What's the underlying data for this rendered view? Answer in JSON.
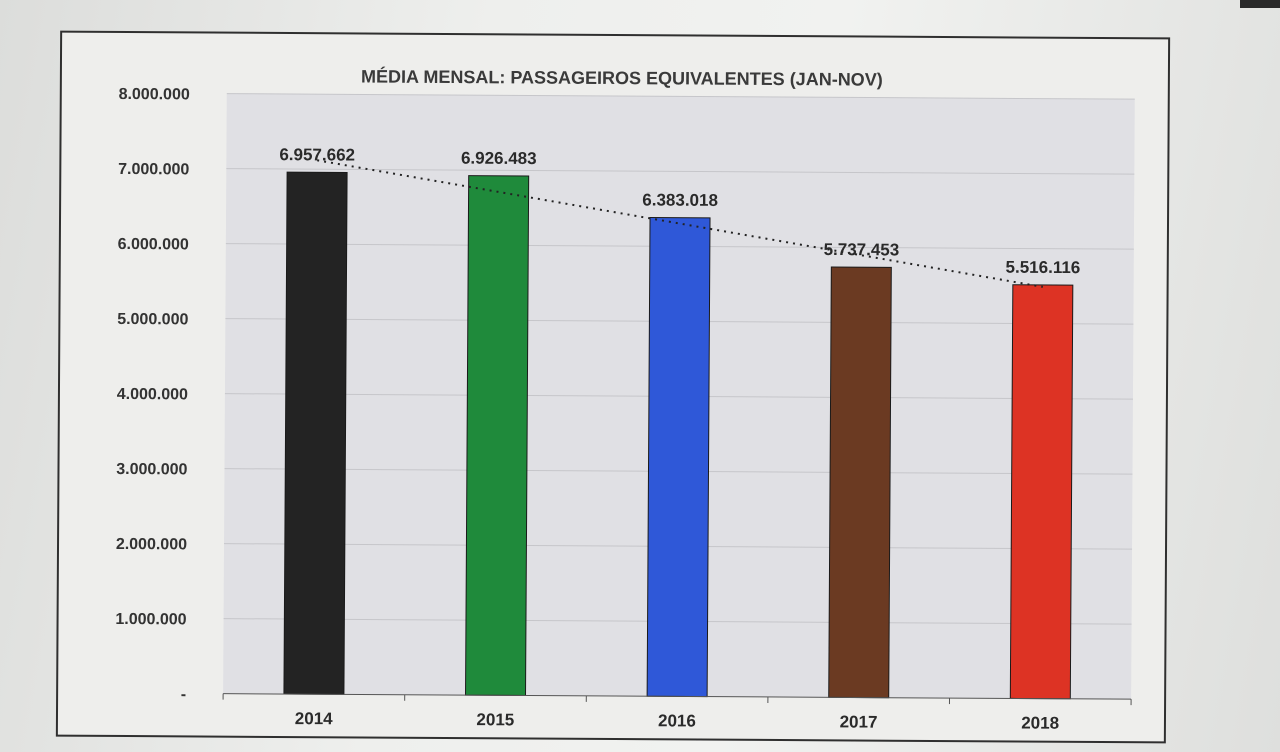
{
  "chart_data": {
    "type": "bar",
    "title": "MÉDIA MENSAL: PASSAGEIROS EQUIVALENTES (JAN-NOV)",
    "xlabel": "",
    "ylabel": "",
    "categories": [
      "2014",
      "2015",
      "2016",
      "2017",
      "2018"
    ],
    "values": [
      6957662,
      6926483,
      6383018,
      5737453,
      5516116
    ],
    "data_labels": [
      "6.957.662",
      "6.926.483",
      "6.383.018",
      "5.737.453",
      "5.516.116"
    ],
    "bar_colors": [
      "#232323",
      "#1f8a3b",
      "#2f58d8",
      "#6b3a22",
      "#dd3324"
    ],
    "ylim": [
      0,
      8000000
    ],
    "y_ticks": [
      0,
      1000000,
      2000000,
      3000000,
      4000000,
      5000000,
      6000000,
      7000000,
      8000000
    ],
    "y_tick_labels": [
      "-",
      "1.000.000",
      "2.000.000",
      "3.000.000",
      "4.000.000",
      "5.000.000",
      "6.000.000",
      "7.000.000",
      "8.000.000"
    ],
    "grid": true,
    "trendline": "linear-dotted",
    "legend": "none"
  }
}
